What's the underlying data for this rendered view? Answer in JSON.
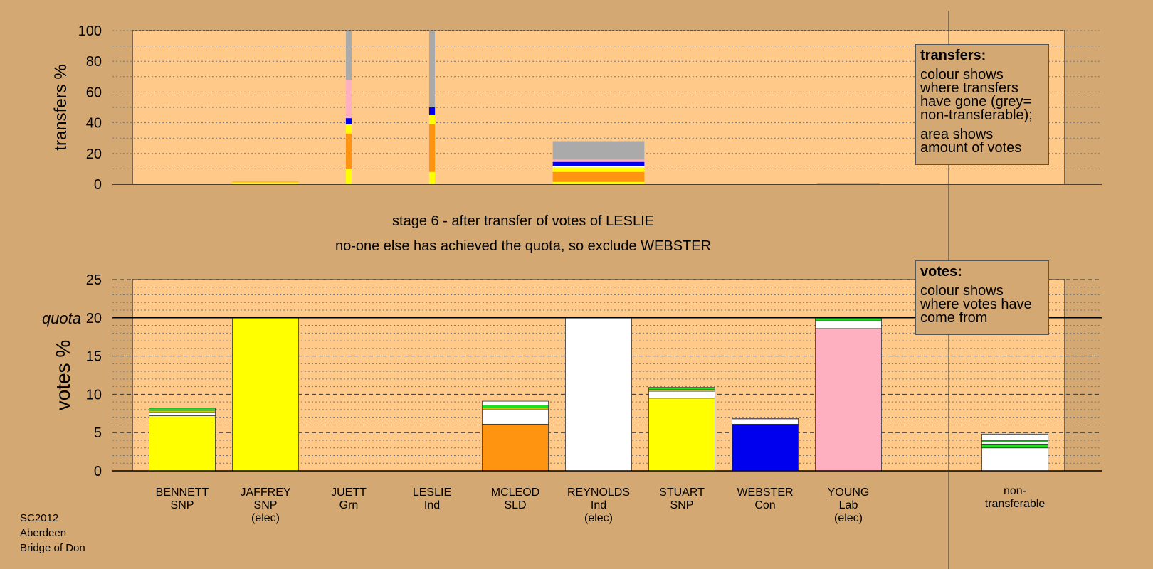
{
  "stage": {
    "title": "stage 6 - after transfer of votes of LESLIE",
    "subtitle": "no-one else has achieved the quota, so exclude WEBSTER"
  },
  "footer": {
    "election": "SC2012",
    "council": "Aberdeen",
    "ward": "Bridge of Don"
  },
  "legend_transfers": {
    "title": "transfers:",
    "text1": "colour shows where transfers have gone (grey= non-transferable);",
    "text2": "area shows amount of votes"
  },
  "legend_votes": {
    "title": "votes:",
    "text": "colour shows where votes have come from"
  },
  "colors": {
    "background": "#D4A872",
    "plot": "#FFC98A",
    "SNP": "#FFFF00",
    "Grn": "#22DD22",
    "Ind": "#FFFFFF",
    "SLD": "#FF9410",
    "Con": "#0000EE",
    "Lab": "#FFB0C0",
    "nontransferable": "#AAAAAA"
  },
  "chart_data": [
    {
      "type": "bar",
      "name": "transfers",
      "ylabel": "transfers %",
      "ylim": [
        0,
        100
      ],
      "yticks": [
        0,
        20,
        40,
        60,
        80,
        100
      ],
      "bars": [
        {
          "cat": "JAFFREY",
          "width": 0.8,
          "stack": [
            {
              "color": "SNP",
              "value": 1.2
            },
            {
              "color": "SLD",
              "value": 0.4
            }
          ]
        },
        {
          "cat": "JUETT",
          "width": 0.07,
          "stack": [
            {
              "color": "SNP",
              "value": 10
            },
            {
              "color": "SLD",
              "value": 23
            },
            {
              "color": "SNP",
              "value": 6
            },
            {
              "color": "Con",
              "value": 4
            },
            {
              "color": "Lab",
              "value": 25
            },
            {
              "color": "nontransferable",
              "value": 32
            }
          ]
        },
        {
          "cat": "LESLIE",
          "width": 0.07,
          "stack": [
            {
              "color": "SNP",
              "value": 8
            },
            {
              "color": "SLD",
              "value": 31
            },
            {
              "color": "SNP",
              "value": 6
            },
            {
              "color": "Con",
              "value": 5
            },
            {
              "color": "nontransferable",
              "value": 50
            }
          ]
        },
        {
          "cat": "REYNOLDS",
          "width": 1.1,
          "stack": [
            {
              "color": "SNP",
              "value": 1.5
            },
            {
              "color": "SLD",
              "value": 6.5
            },
            {
              "color": "SNP",
              "value": 3
            },
            {
              "color": "Ind",
              "value": 1
            },
            {
              "color": "Con",
              "value": 2.5
            },
            {
              "color": "Lab",
              "value": 1.5
            },
            {
              "color": "nontransferable",
              "value": 12
            }
          ]
        },
        {
          "cat": "YOUNG",
          "width": 0.75,
          "stack": [
            {
              "color": "SLD",
              "value": 0.3
            },
            {
              "color": "nontransferable",
              "value": 0.6
            }
          ]
        }
      ]
    },
    {
      "type": "bar",
      "name": "votes",
      "ylabel": "votes %",
      "ylim": [
        0,
        25
      ],
      "yticks": [
        0,
        5,
        10,
        15,
        20,
        25
      ],
      "quota": 20,
      "quota_label": "quota",
      "categories": [
        {
          "name": "BENNETT",
          "party": "SNP",
          "status": ""
        },
        {
          "name": "JAFFREY",
          "party": "SNP",
          "status": "(elec)"
        },
        {
          "name": "JUETT",
          "party": "Grn",
          "status": ""
        },
        {
          "name": "LESLIE",
          "party": "Ind",
          "status": ""
        },
        {
          "name": "MCLEOD",
          "party": "SLD",
          "status": ""
        },
        {
          "name": "REYNOLDS",
          "party": "Ind",
          "status": "(elec)"
        },
        {
          "name": "STUART",
          "party": "SNP",
          "status": ""
        },
        {
          "name": "WEBSTER",
          "party": "Con",
          "status": ""
        },
        {
          "name": "YOUNG",
          "party": "Lab",
          "status": "(elec)"
        }
      ],
      "nontransferable_label": [
        "non-",
        "transferable"
      ],
      "bars": [
        {
          "cat": "BENNETT",
          "stack": [
            {
              "color": "SNP",
              "value": 7.2
            },
            {
              "color": "Ind",
              "value": 0.5
            },
            {
              "color": "SNP",
              "value": 0.2
            },
            {
              "color": "Grn",
              "value": 0.3
            }
          ]
        },
        {
          "cat": "JAFFREY",
          "stack": [
            {
              "color": "SNP",
              "value": 20
            }
          ]
        },
        {
          "cat": "JUETT",
          "stack": []
        },
        {
          "cat": "LESLIE",
          "stack": []
        },
        {
          "cat": "MCLEOD",
          "stack": [
            {
              "color": "SLD",
              "value": 6.1
            },
            {
              "color": "Ind",
              "value": 1.9
            },
            {
              "color": "SNP",
              "value": 0.2
            },
            {
              "color": "Grn",
              "value": 0.4
            },
            {
              "color": "Ind",
              "value": 0.5
            }
          ]
        },
        {
          "cat": "REYNOLDS",
          "stack": [
            {
              "color": "Ind",
              "value": 20
            }
          ]
        },
        {
          "cat": "STUART",
          "stack": [
            {
              "color": "SNP",
              "value": 9.5
            },
            {
              "color": "Ind",
              "value": 0.9
            },
            {
              "color": "SNP",
              "value": 0.2
            },
            {
              "color": "Grn",
              "value": 0.3
            }
          ]
        },
        {
          "cat": "WEBSTER",
          "stack": [
            {
              "color": "Con",
              "value": 6.1
            },
            {
              "color": "Ind",
              "value": 0.7
            },
            {
              "color": "Lab",
              "value": 0.1
            }
          ]
        },
        {
          "cat": "YOUNG",
          "stack": [
            {
              "color": "Lab",
              "value": 18.6
            },
            {
              "color": "Ind",
              "value": 1
            },
            {
              "color": "Grn",
              "value": 0.4
            }
          ]
        },
        {
          "cat": "non-transferable",
          "stack": [
            {
              "color": "Ind",
              "value": 3
            },
            {
              "color": "Grn",
              "value": 0.5
            },
            {
              "color": "Ind",
              "value": 0.3
            },
            {
              "color": "Grn",
              "value": 0.2
            },
            {
              "color": "Ind",
              "value": 0.8
            }
          ]
        }
      ]
    }
  ]
}
